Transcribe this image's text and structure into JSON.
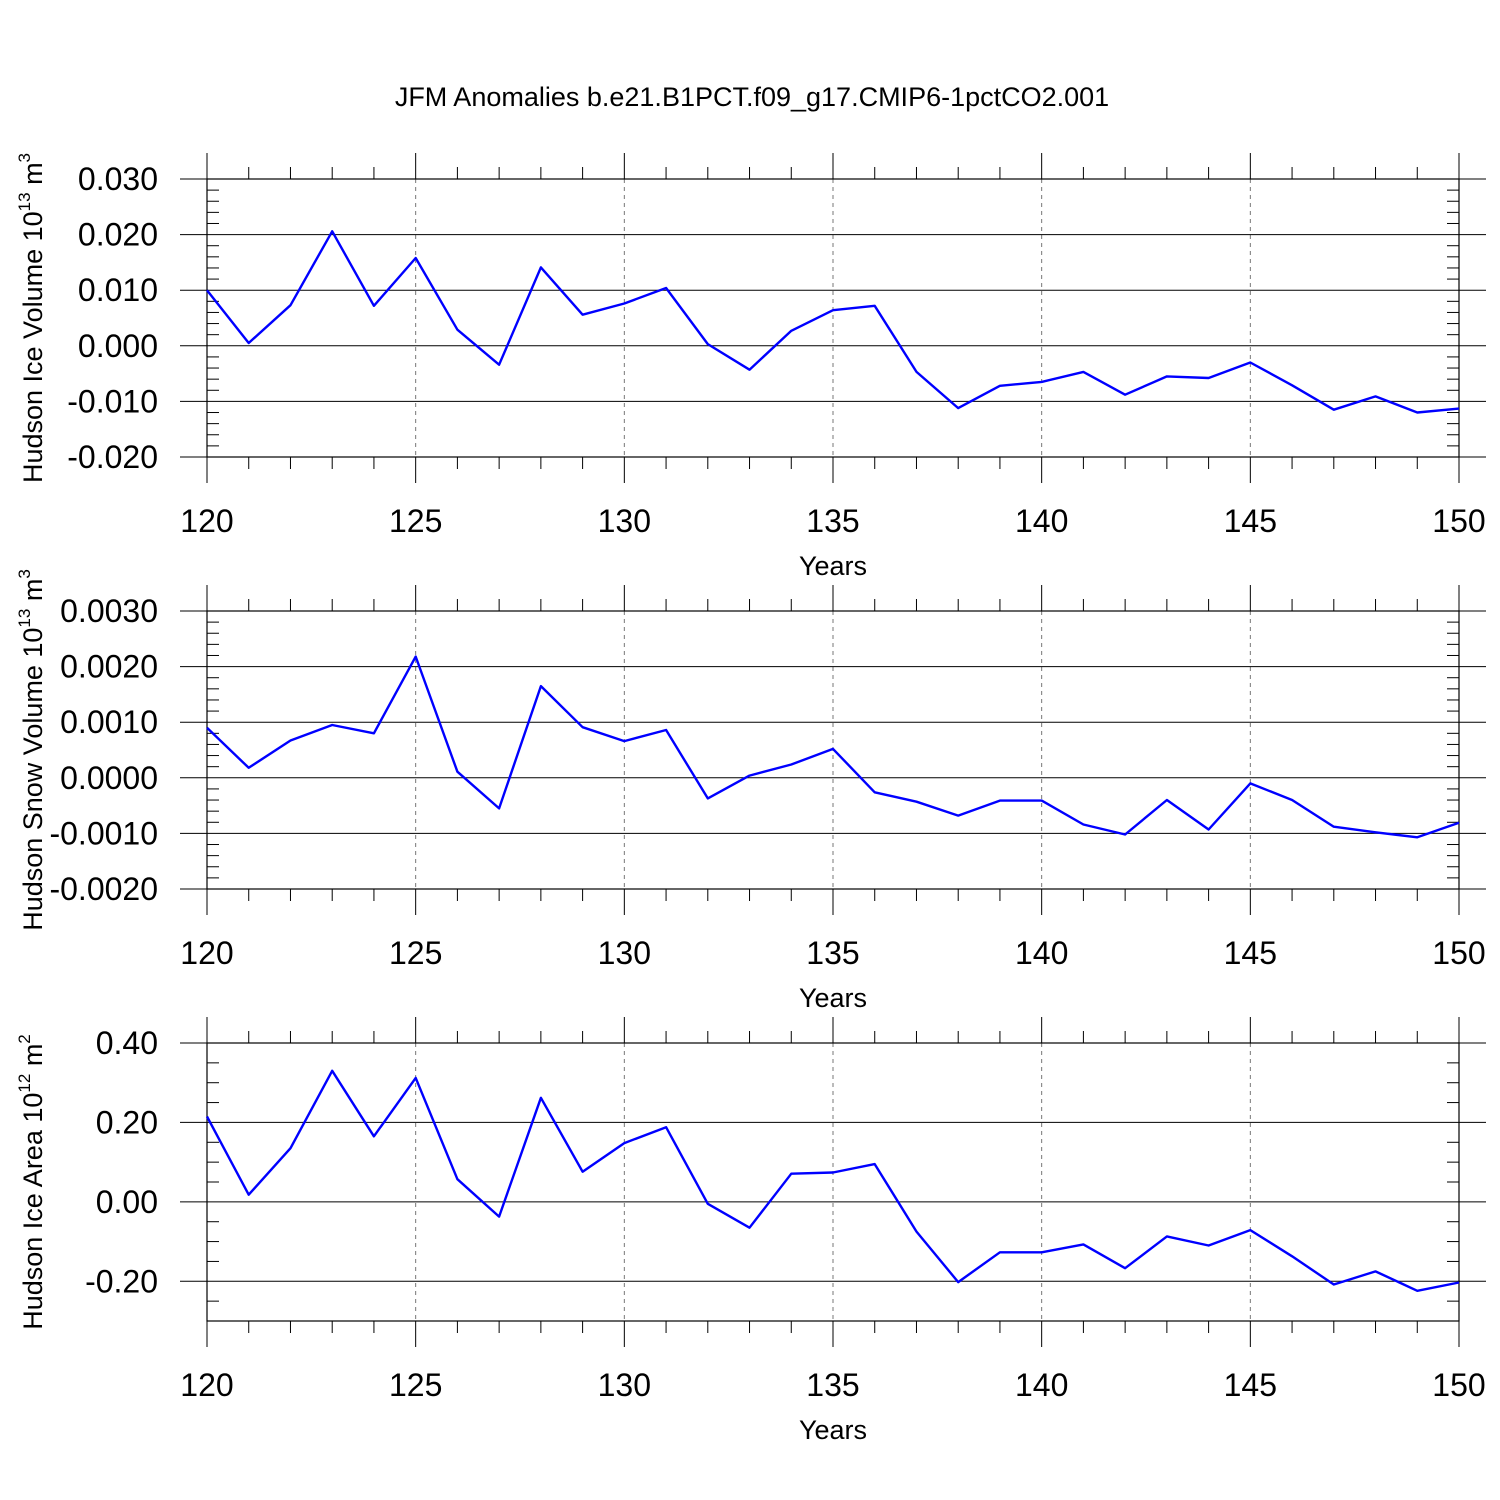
{
  "title": "JFM Anomalies b.e21.B1PCT.f09_g17.CMIP6-1pctCO2.001",
  "colors": {
    "line": "#0000ff",
    "grid": "#777777",
    "axis": "#000000"
  },
  "chart_data": [
    {
      "type": "line",
      "xlabel": "Years",
      "ylabel": {
        "main": "Hudson Ice Volume 10",
        "exp": "13",
        "unit": " m",
        "unit_exp": "3"
      },
      "xlim": [
        120,
        150
      ],
      "ylim": [
        -0.02,
        0.03
      ],
      "x_ticks": [
        120,
        125,
        130,
        135,
        140,
        145,
        150
      ],
      "x_tick_labels": [
        "120",
        "125",
        "130",
        "135",
        "140",
        "145",
        "150"
      ],
      "y_ticks": [
        -0.02,
        -0.01,
        0.0,
        0.01,
        0.02,
        0.03
      ],
      "y_tick_labels": [
        "-0.020",
        "-0.010",
        "0.000",
        "0.010",
        "0.020",
        "0.030"
      ],
      "y_minor_step": 0.002,
      "x": [
        120,
        121,
        122,
        123,
        124,
        125,
        126,
        127,
        128,
        129,
        130,
        131,
        132,
        133,
        134,
        135,
        136,
        137,
        138,
        139,
        140,
        141,
        142,
        143,
        144,
        145,
        146,
        147,
        148,
        149,
        150
      ],
      "values": [
        0.01,
        0.0005,
        0.0073,
        0.0206,
        0.0072,
        0.0158,
        0.0029,
        -0.0034,
        0.0141,
        0.0056,
        0.0076,
        0.0104,
        0.0003,
        -0.0043,
        0.0027,
        0.0064,
        0.0072,
        -0.0047,
        -0.0112,
        -0.0072,
        -0.0065,
        -0.0047,
        -0.0088,
        -0.0055,
        -0.0058,
        -0.003,
        -0.0071,
        -0.0115,
        -0.0091,
        -0.012,
        -0.0113
      ]
    },
    {
      "type": "line",
      "xlabel": "Years",
      "ylabel": {
        "main": "Hudson Snow Volume 10",
        "exp": "13",
        "unit": " m",
        "unit_exp": "3"
      },
      "xlim": [
        120,
        150
      ],
      "ylim": [
        -0.002,
        0.003
      ],
      "x_ticks": [
        120,
        125,
        130,
        135,
        140,
        145,
        150
      ],
      "x_tick_labels": [
        "120",
        "125",
        "130",
        "135",
        "140",
        "145",
        "150"
      ],
      "y_ticks": [
        -0.002,
        -0.001,
        0.0,
        0.001,
        0.002,
        0.003
      ],
      "y_tick_labels": [
        "-0.0020",
        "-0.0010",
        "0.0000",
        "0.0010",
        "0.0020",
        "0.0030"
      ],
      "y_minor_step": 0.0002,
      "x": [
        120,
        121,
        122,
        123,
        124,
        125,
        126,
        127,
        128,
        129,
        130,
        131,
        132,
        133,
        134,
        135,
        136,
        137,
        138,
        139,
        140,
        141,
        142,
        143,
        144,
        145,
        146,
        147,
        148,
        149,
        150
      ],
      "values": [
        0.0009,
        0.00018,
        0.00067,
        0.00095,
        0.0008,
        0.00218,
        0.00011,
        -0.00055,
        0.00165,
        0.00091,
        0.00066,
        0.00086,
        -0.00037,
        4e-05,
        0.00024,
        0.00052,
        -0.00026,
        -0.00043,
        -0.00068,
        -0.00041,
        -0.00041,
        -0.00084,
        -0.00102,
        -0.0004,
        -0.00093,
        -0.0001,
        -0.0004,
        -0.00088,
        -0.00098,
        -0.00107,
        -0.00081
      ]
    },
    {
      "type": "line",
      "xlabel": "Years",
      "ylabel": {
        "main": "Hudson Ice Area 10",
        "exp": "12",
        "unit": " m",
        "unit_exp": "2"
      },
      "xlim": [
        120,
        150
      ],
      "ylim": [
        -0.3,
        0.4
      ],
      "x_ticks": [
        120,
        125,
        130,
        135,
        140,
        145,
        150
      ],
      "x_tick_labels": [
        "120",
        "125",
        "130",
        "135",
        "140",
        "145",
        "150"
      ],
      "y_ticks": [
        -0.2,
        0.0,
        0.2,
        0.4
      ],
      "y_tick_labels": [
        "-0.20",
        "0.00",
        "0.20",
        "0.40"
      ],
      "y_minor_step": 0.05,
      "x": [
        120,
        121,
        122,
        123,
        124,
        125,
        126,
        127,
        128,
        129,
        130,
        131,
        132,
        133,
        134,
        135,
        136,
        137,
        138,
        139,
        140,
        141,
        142,
        143,
        144,
        145,
        146,
        147,
        148,
        149,
        150
      ],
      "values": [
        0.215,
        0.018,
        0.135,
        0.33,
        0.165,
        0.312,
        0.057,
        -0.037,
        0.262,
        0.076,
        0.148,
        0.188,
        -0.005,
        -0.065,
        0.071,
        0.074,
        0.095,
        -0.075,
        -0.202,
        -0.127,
        -0.127,
        -0.107,
        -0.167,
        -0.087,
        -0.11,
        -0.071,
        -0.137,
        -0.208,
        -0.175,
        -0.224,
        -0.203
      ]
    }
  ]
}
